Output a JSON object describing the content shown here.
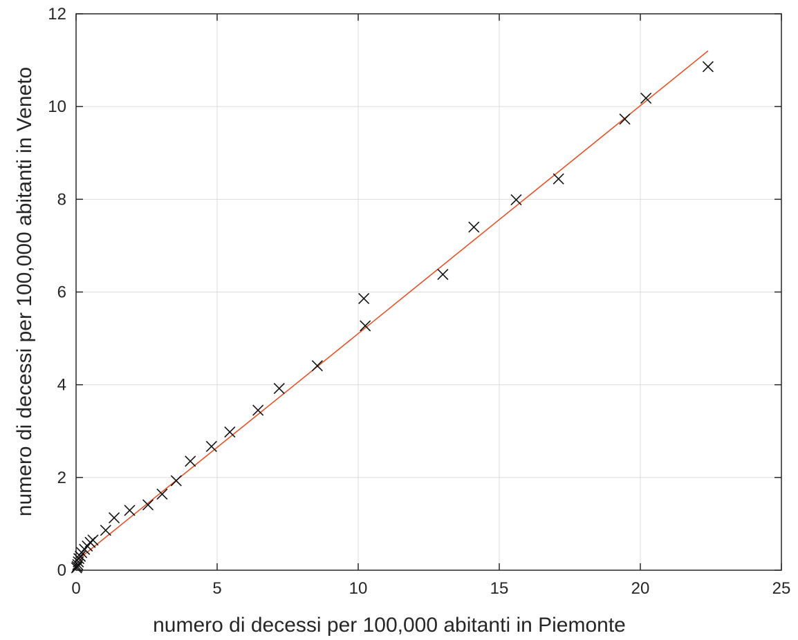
{
  "chart_data": {
    "type": "scatter",
    "title": "",
    "xlabel": "numero di decessi per 100,000 abitanti in Piemonte",
    "ylabel": "numero di decessi per 100,000 abitanti in Veneto",
    "xlim": [
      0,
      25
    ],
    "ylim": [
      0,
      12
    ],
    "xticks": [
      0,
      5,
      10,
      15,
      20,
      25
    ],
    "yticks": [
      0,
      2,
      4,
      6,
      8,
      10,
      12
    ],
    "grid": true,
    "legend": "none",
    "colors": {
      "marker": "#111111",
      "fit_line": "#e0522a",
      "grid": "#dcdcdc",
      "axis": "#262626"
    },
    "series": [
      {
        "marker": "x",
        "points": [
          [
            0.02,
            0.05
          ],
          [
            0.04,
            0.08
          ],
          [
            0.06,
            0.12
          ],
          [
            0.08,
            0.18
          ],
          [
            0.1,
            0.25
          ],
          [
            0.15,
            0.3
          ],
          [
            0.2,
            0.38
          ],
          [
            0.3,
            0.45
          ],
          [
            0.4,
            0.52
          ],
          [
            0.5,
            0.6
          ],
          [
            0.6,
            0.65
          ],
          [
            1.05,
            0.86
          ],
          [
            1.35,
            1.13
          ],
          [
            1.9,
            1.29
          ],
          [
            2.55,
            1.41
          ],
          [
            3.05,
            1.64
          ],
          [
            3.55,
            1.93
          ],
          [
            4.05,
            2.35
          ],
          [
            4.8,
            2.67
          ],
          [
            5.45,
            2.98
          ],
          [
            6.45,
            3.45
          ],
          [
            7.2,
            3.92
          ],
          [
            8.55,
            4.41
          ],
          [
            10.2,
            5.86
          ],
          [
            10.25,
            5.27
          ],
          [
            13.0,
            6.38
          ],
          [
            14.1,
            7.4
          ],
          [
            15.6,
            7.99
          ],
          [
            17.1,
            8.44
          ],
          [
            19.45,
            9.73
          ],
          [
            20.2,
            10.18
          ],
          [
            22.4,
            10.86
          ]
        ]
      },
      {
        "type": "line",
        "points": [
          [
            0.05,
            0.22
          ],
          [
            10.3,
            5.25
          ],
          [
            22.4,
            11.2
          ]
        ]
      }
    ]
  }
}
